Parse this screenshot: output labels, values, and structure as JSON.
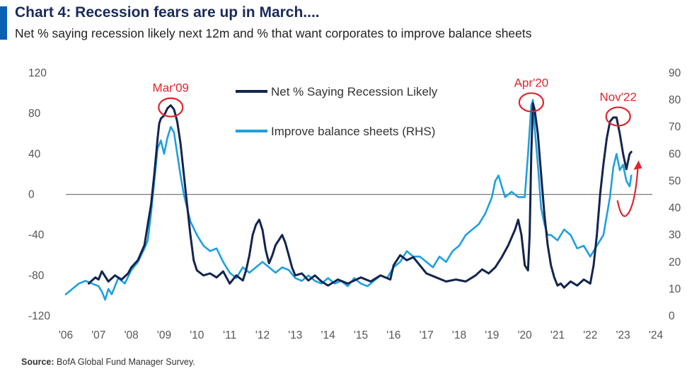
{
  "header": {
    "title": "Chart 4: Recession fears are up in March....",
    "subtitle": "Net % saying recession likely next 12m and % that want corporates to improve balance sheets",
    "accent_color": "#0b5fb5"
  },
  "source": {
    "label": "Source:",
    "text": "BofA Global Fund Manager Survey."
  },
  "chart_data": {
    "type": "line",
    "title": "Chart 4: Recession fears are up in March....",
    "subtitle": "Net % saying recession likely next 12m and % that want corporates to improve balance sheets",
    "x_tick_labels": [
      "'06",
      "'07",
      "'08",
      "'09",
      "'10",
      "'11",
      "'12",
      "'13",
      "'14",
      "'15",
      "'16",
      "'17",
      "'18",
      "'19",
      "'20",
      "'21",
      "'22",
      "'23",
      "'24"
    ],
    "xlim": [
      2006.0,
      2024.0
    ],
    "y_left": {
      "ylim": [
        -120,
        120
      ],
      "ticks": [
        120,
        80,
        40,
        0,
        -40,
        -80,
        -120
      ]
    },
    "y_right": {
      "ylim": [
        0,
        90
      ],
      "ticks": [
        90,
        80,
        70,
        60,
        50,
        40,
        30,
        20,
        10,
        0
      ]
    },
    "zero_line": 0,
    "grid": false,
    "legend_position": "top-center",
    "series": [
      {
        "name": "Net % Saying Recession Likely",
        "axis": "left",
        "color": "#13244f",
        "x": [
          2006.7,
          2006.9,
          2007.0,
          2007.1,
          2007.3,
          2007.5,
          2007.7,
          2007.9,
          2008.0,
          2008.2,
          2008.4,
          2008.5,
          2008.6,
          2008.7,
          2008.8,
          2008.85,
          2008.9,
          2009.0,
          2009.1,
          2009.2,
          2009.3,
          2009.4,
          2009.5,
          2009.6,
          2009.7,
          2009.8,
          2009.9,
          2010.0,
          2010.2,
          2010.4,
          2010.6,
          2010.8,
          2011.0,
          2011.2,
          2011.4,
          2011.5,
          2011.6,
          2011.7,
          2011.8,
          2011.9,
          2012.0,
          2012.1,
          2012.2,
          2012.3,
          2012.4,
          2012.5,
          2012.6,
          2012.7,
          2012.8,
          2012.9,
          2013.0,
          2013.2,
          2013.4,
          2013.6,
          2013.8,
          2014.0,
          2014.3,
          2014.6,
          2015.0,
          2015.3,
          2015.6,
          2015.9,
          2016.0,
          2016.2,
          2016.4,
          2016.6,
          2016.8,
          2017.0,
          2017.3,
          2017.6,
          2017.9,
          2018.2,
          2018.5,
          2018.7,
          2018.9,
          2019.1,
          2019.3,
          2019.5,
          2019.7,
          2019.8,
          2019.9,
          2020.0,
          2020.1,
          2020.15,
          2020.2,
          2020.25,
          2020.3,
          2020.4,
          2020.5,
          2020.6,
          2020.7,
          2020.8,
          2020.9,
          2021.0,
          2021.1,
          2021.2,
          2021.4,
          2021.6,
          2021.8,
          2022.0,
          2022.1,
          2022.2,
          2022.3,
          2022.4,
          2022.5,
          2022.6,
          2022.7,
          2022.8,
          2022.9,
          2023.0,
          2023.1,
          2023.2,
          2023.25
        ],
        "values": [
          -88,
          -82,
          -84,
          -76,
          -86,
          -80,
          -84,
          -78,
          -72,
          -65,
          -50,
          -30,
          -10,
          20,
          55,
          70,
          75,
          78,
          85,
          88,
          84,
          72,
          50,
          20,
          -10,
          -40,
          -65,
          -75,
          -80,
          -78,
          -82,
          -76,
          -88,
          -80,
          -85,
          -75,
          -60,
          -40,
          -30,
          -25,
          -35,
          -55,
          -68,
          -60,
          -50,
          -45,
          -40,
          -48,
          -60,
          -72,
          -80,
          -78,
          -85,
          -80,
          -86,
          -90,
          -84,
          -88,
          -82,
          -86,
          -80,
          -84,
          -70,
          -60,
          -65,
          -62,
          -70,
          -78,
          -82,
          -86,
          -84,
          -86,
          -80,
          -74,
          -78,
          -72,
          -62,
          -50,
          -35,
          -25,
          -40,
          -70,
          -75,
          -40,
          40,
          90,
          84,
          60,
          20,
          -20,
          -50,
          -70,
          -82,
          -90,
          -88,
          -92,
          -86,
          -90,
          -84,
          -88,
          -70,
          -40,
          0,
          30,
          55,
          72,
          76,
          76,
          60,
          40,
          25,
          40,
          42
        ]
      },
      {
        "name": "Improve balance sheets (RHS)",
        "axis": "right",
        "color": "#1ea0de",
        "x": [
          2006.0,
          2006.2,
          2006.4,
          2006.6,
          2006.8,
          2007.0,
          2007.1,
          2007.2,
          2007.3,
          2007.4,
          2007.6,
          2007.8,
          2008.0,
          2008.2,
          2008.4,
          2008.5,
          2008.6,
          2008.7,
          2008.8,
          2008.9,
          2009.0,
          2009.1,
          2009.2,
          2009.3,
          2009.4,
          2009.5,
          2009.6,
          2009.8,
          2010.0,
          2010.2,
          2010.4,
          2010.6,
          2010.8,
          2011.0,
          2011.2,
          2011.4,
          2011.6,
          2011.8,
          2012.0,
          2012.2,
          2012.4,
          2012.6,
          2012.8,
          2013.0,
          2013.2,
          2013.4,
          2013.6,
          2013.8,
          2014.0,
          2014.2,
          2014.4,
          2014.6,
          2014.8,
          2015.0,
          2015.2,
          2015.4,
          2015.6,
          2015.8,
          2016.0,
          2016.2,
          2016.4,
          2016.6,
          2016.8,
          2017.0,
          2017.2,
          2017.4,
          2017.6,
          2017.8,
          2018.0,
          2018.2,
          2018.4,
          2018.6,
          2018.8,
          2019.0,
          2019.1,
          2019.2,
          2019.3,
          2019.4,
          2019.6,
          2019.8,
          2020.0,
          2020.1,
          2020.2,
          2020.25,
          2020.3,
          2020.4,
          2020.5,
          2020.6,
          2020.7,
          2020.8,
          2021.0,
          2021.2,
          2021.4,
          2021.6,
          2021.8,
          2022.0,
          2022.2,
          2022.4,
          2022.6,
          2022.7,
          2022.8,
          2022.9,
          2023.0,
          2023.1,
          2023.2,
          2023.25
        ],
        "values": [
          8,
          10,
          12,
          13,
          12,
          11,
          9,
          6,
          10,
          8,
          14,
          12,
          17,
          20,
          25,
          28,
          38,
          50,
          62,
          65,
          60,
          66,
          70,
          68,
          60,
          52,
          45,
          35,
          30,
          26,
          24,
          25,
          20,
          16,
          14,
          18,
          16,
          18,
          20,
          18,
          16,
          18,
          17,
          14,
          13,
          15,
          13,
          12,
          14,
          12,
          13,
          11,
          14,
          12,
          11,
          13,
          15,
          14,
          18,
          20,
          24,
          22,
          22,
          20,
          18,
          22,
          20,
          24,
          26,
          30,
          32,
          34,
          38,
          44,
          50,
          52,
          48,
          44,
          46,
          44,
          44,
          60,
          78,
          80,
          70,
          56,
          40,
          34,
          30,
          30,
          28,
          32,
          30,
          25,
          26,
          22,
          26,
          30,
          44,
          55,
          60,
          54,
          56,
          50,
          48,
          52
        ]
      }
    ],
    "annotations": [
      {
        "label": "Mar'09",
        "x": 2009.2,
        "y": 86,
        "marker": "circle",
        "color": "#e0242c"
      },
      {
        "label": "Apr'20",
        "x": 2020.2,
        "y": 91,
        "marker": "circle",
        "color": "#e0242c"
      },
      {
        "label": "Nov'22",
        "x": 2022.85,
        "y": 77,
        "marker": "circle",
        "color": "#e0242c"
      }
    ],
    "arrow": {
      "from": [
        2023.0,
        5
      ],
      "to": [
        2023.45,
        30
      ],
      "color": "#e0242c",
      "direction": "up"
    }
  }
}
